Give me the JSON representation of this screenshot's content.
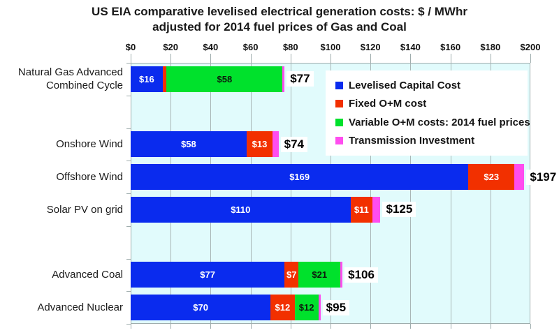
{
  "title": {
    "line1": "US EIA comparative levelised electrical generation costs:  $ / MWhr",
    "line2": "adjusted for 2014 fuel prices of Gas and Coal"
  },
  "colors": {
    "capital": "#0a2bee",
    "fixed": "#f23000",
    "variable": "#00e12c",
    "transmission": "#ff4def",
    "plot_bg": "#e1fbfc",
    "grid": "#a9b6b6",
    "axis": "#9fadad"
  },
  "axis": {
    "tick_labels": [
      "$0",
      "$20",
      "$40",
      "$60",
      "$80",
      "$100",
      "$120",
      "$140",
      "$160",
      "$180",
      "$200"
    ],
    "min": 0,
    "max": 200,
    "step": 20
  },
  "legend": {
    "items": [
      {
        "key": "capital",
        "label": "Levelised Capital Cost"
      },
      {
        "key": "fixed",
        "label": "Fixed O+M cost"
      },
      {
        "key": "variable",
        "label": "Variable O+M costs: 2014 fuel prices"
      },
      {
        "key": "transmission",
        "label": "Transmission Investment"
      }
    ]
  },
  "chart_data": {
    "type": "bar",
    "orientation": "horizontal",
    "stacked": true,
    "title": "US EIA comparative levelised electrical generation costs: $ / MWhr adjusted for 2014 fuel prices of Gas and Coal",
    "xlabel": "$ / MWhr",
    "xlim": [
      0,
      200
    ],
    "x_tick_step": 20,
    "grid": true,
    "legend_position": "top-right",
    "series": [
      "Levelised Capital Cost",
      "Fixed O+M cost",
      "Variable O+M costs: 2014 fuel prices",
      "Transmission Investment"
    ],
    "categories": [
      "Natural Gas Advanced Combined Cycle",
      "Onshore Wind",
      "Offshore Wind",
      "Solar PV on grid",
      "Advanced Coal",
      "Advanced Nuclear"
    ],
    "rows": [
      {
        "category": "Natural Gas Advanced Combined Cycle",
        "label_lines": [
          "Natural Gas Advanced",
          "Combined Cycle"
        ],
        "slot": 0,
        "total": 77,
        "total_label": "$77",
        "segments": [
          {
            "key": "capital",
            "value": 16,
            "label": "$16"
          },
          {
            "key": "fixed",
            "value": 2,
            "label": ""
          },
          {
            "key": "variable",
            "value": 58,
            "label": "$58"
          },
          {
            "key": "transmission",
            "value": 1,
            "label": ""
          }
        ]
      },
      {
        "category": "Onshore Wind",
        "label_lines": [
          "Onshore Wind"
        ],
        "slot": 2,
        "total": 74,
        "total_label": "$74",
        "segments": [
          {
            "key": "capital",
            "value": 58,
            "label": "$58"
          },
          {
            "key": "fixed",
            "value": 13,
            "label": "$13"
          },
          {
            "key": "transmission",
            "value": 3,
            "label": ""
          }
        ]
      },
      {
        "category": "Offshore Wind",
        "label_lines": [
          "Offshore Wind"
        ],
        "slot": 3,
        "total": 197,
        "total_label": "$197",
        "segments": [
          {
            "key": "capital",
            "value": 169,
            "label": "$169"
          },
          {
            "key": "fixed",
            "value": 23,
            "label": "$23"
          },
          {
            "key": "transmission",
            "value": 5,
            "label": ""
          }
        ]
      },
      {
        "category": "Solar PV on grid",
        "label_lines": [
          "Solar PV on grid"
        ],
        "slot": 4,
        "total": 125,
        "total_label": "$125",
        "segments": [
          {
            "key": "capital",
            "value": 110,
            "label": "$110"
          },
          {
            "key": "fixed",
            "value": 11,
            "label": "$11"
          },
          {
            "key": "transmission",
            "value": 4,
            "label": ""
          }
        ]
      },
      {
        "category": "Advanced Coal",
        "label_lines": [
          "Advanced Coal"
        ],
        "slot": 6,
        "total": 106,
        "total_label": "$106",
        "segments": [
          {
            "key": "capital",
            "value": 77,
            "label": "$77"
          },
          {
            "key": "fixed",
            "value": 7,
            "label": "$7"
          },
          {
            "key": "variable",
            "value": 21,
            "label": "$21"
          },
          {
            "key": "transmission",
            "value": 1,
            "label": ""
          }
        ]
      },
      {
        "category": "Advanced Nuclear",
        "label_lines": [
          "Advanced Nuclear"
        ],
        "slot": 7,
        "total": 95,
        "total_label": "$95",
        "segments": [
          {
            "key": "capital",
            "value": 70,
            "label": "$70"
          },
          {
            "key": "fixed",
            "value": 12,
            "label": "$12"
          },
          {
            "key": "variable",
            "value": 12,
            "label": "$12"
          },
          {
            "key": "transmission",
            "value": 1,
            "label": ""
          }
        ]
      }
    ]
  }
}
